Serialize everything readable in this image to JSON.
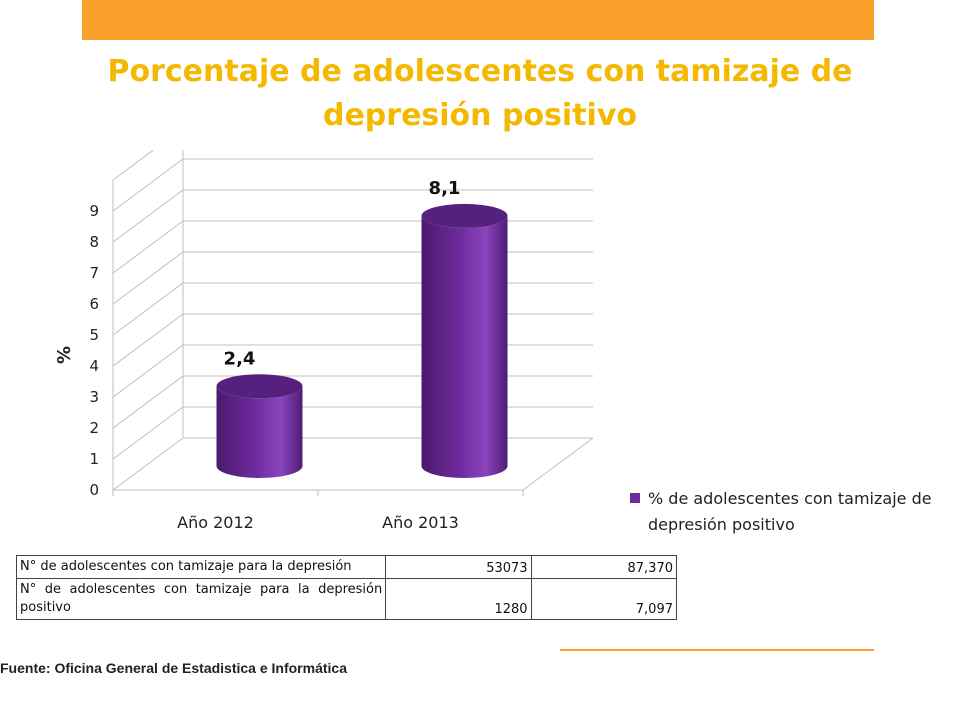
{
  "colors": {
    "accent": "#F9A12B",
    "title": "#F5B800",
    "bar": "#6E2B9E",
    "bar_top": "#55207E",
    "grid": "#BFBFBF"
  },
  "title": "Porcentaje de adolescentes con tamizaje de depresión positivo",
  "chart_data": {
    "type": "bar",
    "categories": [
      "Año 2012",
      "Año 2013"
    ],
    "series": [
      {
        "name": "% de adolescentes con tamizaje de depresión positivo",
        "values": [
          2.4,
          8.1
        ]
      }
    ],
    "data_labels": [
      "2,4",
      "8,1"
    ],
    "ylabel": "%",
    "xlabel": "",
    "ylim": [
      0,
      9
    ],
    "yticks": [
      "0",
      "1",
      "2",
      "3",
      "4",
      "5",
      "6",
      "7",
      "8",
      "9"
    ],
    "grid": true,
    "style": "3d-cylinder",
    "legend_position": "right"
  },
  "table": {
    "rows": [
      {
        "label": "N° de adolescentes con tamizaje para la depresión",
        "values": [
          "53073",
          "87,370"
        ]
      },
      {
        "label": "N° de adolescentes con tamizaje para la depresión positivo",
        "values": [
          "1280",
          "7,097"
        ]
      }
    ]
  },
  "source": "Fuente:  Oficina General de Estadistica  e Informática"
}
